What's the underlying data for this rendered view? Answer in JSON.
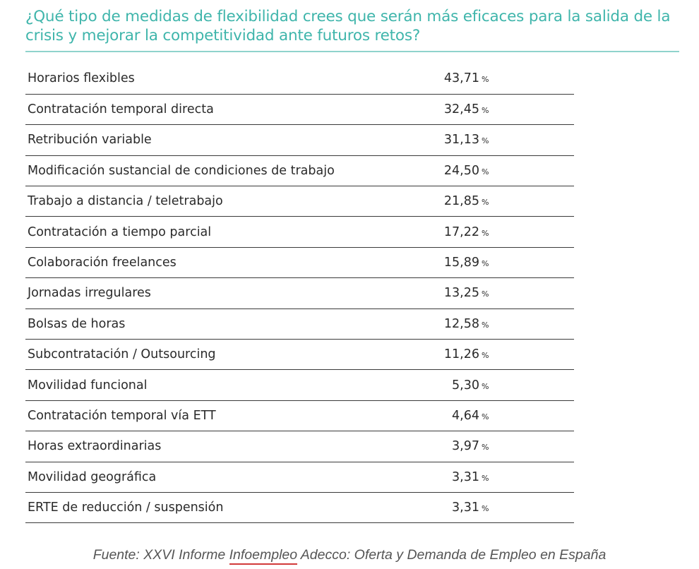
{
  "title": "¿Qué tipo de medidas de flexibilidad crees que serán más eficaces para la salida de la crisis y mejorar la competitividad ante futuros retos?",
  "rows": [
    {
      "label": "Horarios flexibles",
      "value": "43,71",
      "unit": "%"
    },
    {
      "label": "Contratación temporal directa",
      "value": "32,45",
      "unit": "%"
    },
    {
      "label": "Retribución variable",
      "value": "31,13",
      "unit": "%"
    },
    {
      "label": "Modificación sustancial de condiciones de trabajo",
      "value": "24,50",
      "unit": "%"
    },
    {
      "label": "Trabajo a distancia / teletrabajo",
      "value": "21,85",
      "unit": "%"
    },
    {
      "label": "Contratación a tiempo parcial",
      "value": "17,22",
      "unit": "%"
    },
    {
      "label": "Colaboración freelances",
      "value": "15,89",
      "unit": "%"
    },
    {
      "label": "Jornadas irregulares",
      "value": "13,25",
      "unit": "%"
    },
    {
      "label": "Bolsas de horas",
      "value": "12,58",
      "unit": "%"
    },
    {
      "label": "Subcontratación / Outsourcing",
      "value": "11,26",
      "unit": "%"
    },
    {
      "label": "Movilidad funcional",
      "value": "5,30",
      "unit": "%"
    },
    {
      "label": "Contratación temporal vía ETT",
      "value": "4,64",
      "unit": "%"
    },
    {
      "label": "Horas extraordinarias",
      "value": "3,97",
      "unit": "%"
    },
    {
      "label": "Movilidad geográfica",
      "value": "3,31",
      "unit": "%"
    },
    {
      "label": "ERTE de reducción / suspensión",
      "value": "3,31",
      "unit": "%"
    }
  ],
  "source": {
    "prefix": "Fuente: XXVI Informe ",
    "link": "Infoempleo",
    "suffix": " Adecco: Oferta y Demanda de Empleo en España"
  },
  "colors": {
    "title": "#3fb5ab",
    "rule": "#8fd3cc",
    "row_border": "#3a3a3a",
    "link_underline": "#d23a3a"
  }
}
